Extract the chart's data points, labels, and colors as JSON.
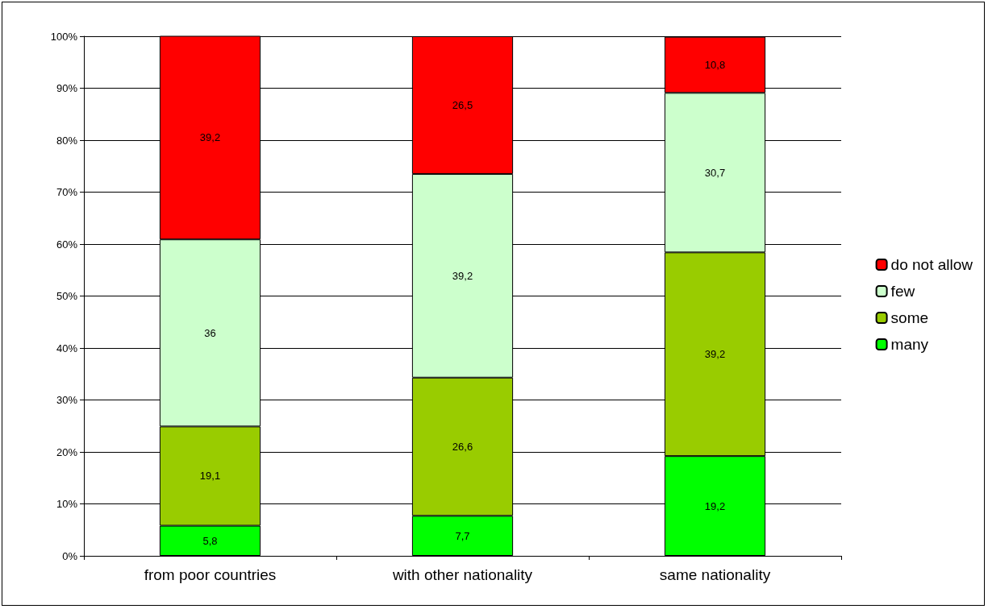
{
  "chart_data": {
    "type": "bar",
    "stacked": true,
    "categories": [
      "from poor countries",
      "with other nationality",
      "same nationality"
    ],
    "series": [
      {
        "name": "many",
        "color": "#00ff00",
        "values": [
          5.8,
          7.7,
          19.2
        ],
        "value_labels": [
          "5,8",
          "7,7",
          "19,2"
        ]
      },
      {
        "name": "some",
        "color": "#99cc00",
        "values": [
          19.1,
          26.6,
          39.2
        ],
        "value_labels": [
          "19,1",
          "26,6",
          "39,2"
        ]
      },
      {
        "name": "few",
        "color": "#ccffcc",
        "values": [
          36,
          39.2,
          30.7
        ],
        "value_labels": [
          "36",
          "39,2",
          "30,7"
        ]
      },
      {
        "name": "do not allow",
        "color": "#ff0000",
        "values": [
          39.2,
          26.5,
          10.8
        ],
        "value_labels": [
          "39,2",
          "26,5",
          "10,8"
        ]
      }
    ],
    "ylim": [
      0,
      100
    ],
    "yticks": [
      {
        "value": 0,
        "label": "0%"
      },
      {
        "value": 10,
        "label": "10%"
      },
      {
        "value": 20,
        "label": "20%"
      },
      {
        "value": 30,
        "label": "30%"
      },
      {
        "value": 40,
        "label": "40%"
      },
      {
        "value": 50,
        "label": "50%"
      },
      {
        "value": 60,
        "label": "60%"
      },
      {
        "value": 70,
        "label": "70%"
      },
      {
        "value": 80,
        "label": "80%"
      },
      {
        "value": 90,
        "label": "90%"
      },
      {
        "value": 100,
        "label": "100%"
      }
    ],
    "grid": "y",
    "legend": "right"
  }
}
